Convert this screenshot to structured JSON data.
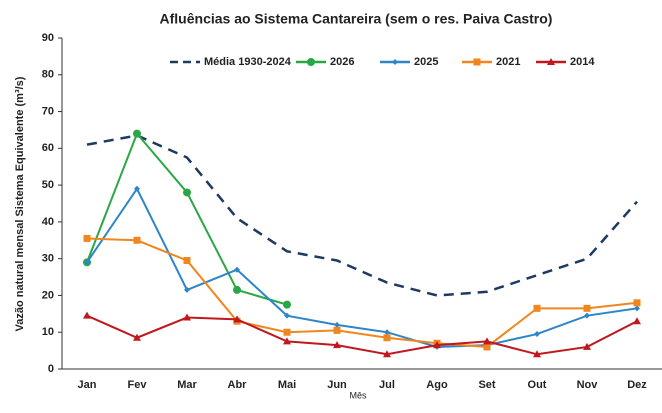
{
  "chart_data": {
    "type": "line",
    "title": "Afluências ao Sistema Cantareira (sem o res. Paiva Castro)",
    "xlabel": "Mês",
    "ylabel": "Vazão natural  mensal Sistema Equivalente (m³/s)",
    "categories": [
      "Jan",
      "Fev",
      "Mar",
      "Abr",
      "Mai",
      "Jun",
      "Jul",
      "Ago",
      "Set",
      "Out",
      "Nov",
      "Dez"
    ],
    "series": [
      {
        "name": "Média 1930-2024",
        "color": "#1f3a5f",
        "dash": true,
        "marker": "none",
        "values": [
          61,
          63.5,
          57.5,
          41,
          32,
          29.5,
          23.5,
          20,
          21,
          25.5,
          30,
          45.5
        ]
      },
      {
        "name": "2026",
        "color": "#2aa745",
        "marker": "circle",
        "values": [
          29,
          64,
          48,
          21.5,
          17.5,
          null,
          null,
          null,
          null,
          null,
          null,
          null
        ]
      },
      {
        "name": "2025",
        "color": "#2e86c8",
        "marker": "diamond",
        "values": [
          29,
          49,
          21.5,
          27,
          14.5,
          12,
          10,
          6,
          6.5,
          9.5,
          14.5,
          16.5
        ]
      },
      {
        "name": "2021",
        "color": "#f0861e",
        "marker": "square",
        "values": [
          35.5,
          35,
          29.5,
          13,
          10,
          10.5,
          8.5,
          7,
          6,
          16.5,
          16.5,
          18
        ]
      },
      {
        "name": "2014",
        "color": "#c0181e",
        "marker": "triangle",
        "values": [
          14.5,
          8.5,
          14,
          13.5,
          7.5,
          6.5,
          4,
          6.5,
          7.5,
          4,
          6,
          13
        ]
      }
    ],
    "ylim": [
      0,
      90
    ],
    "yticks": [
      0,
      10,
      20,
      30,
      40,
      50,
      60,
      70,
      80,
      90
    ],
    "grid": false
  }
}
